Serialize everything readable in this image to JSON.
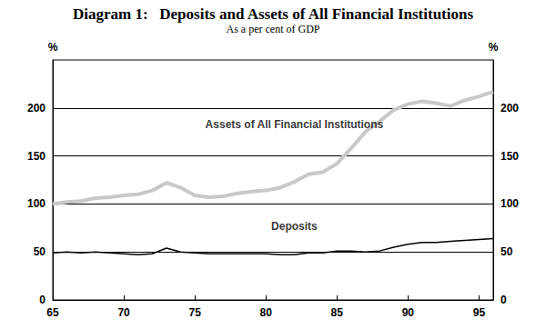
{
  "chart_data": {
    "type": "line",
    "title": "Diagram 1:   Deposits and Assets of All Financial Institutions",
    "subtitle": "As a per cent of GDP",
    "ylabel": "%",
    "x": [
      65,
      66,
      67,
      68,
      69,
      70,
      71,
      72,
      73,
      74,
      75,
      76,
      77,
      78,
      79,
      80,
      81,
      82,
      83,
      84,
      85,
      86,
      87,
      88,
      89,
      90,
      91,
      92,
      93,
      94,
      95,
      96
    ],
    "series": [
      {
        "name": "Assets of All Financial Institutions",
        "color": "#c8c8c8",
        "values": [
          100,
          102,
          103,
          106,
          107,
          109,
          110,
          114,
          122,
          117,
          109,
          107,
          108,
          111,
          113,
          114,
          117,
          123,
          131,
          133,
          142,
          158,
          175,
          186,
          198,
          204,
          207,
          205,
          202,
          208,
          212,
          217
        ]
      },
      {
        "name": "Deposits",
        "color": "#000000",
        "values": [
          49,
          50,
          49,
          50,
          49,
          48,
          47,
          48,
          54,
          50,
          49,
          48,
          48,
          48,
          48,
          48,
          47,
          47,
          49,
          49,
          51,
          51,
          50,
          51,
          55,
          58,
          60,
          60,
          61,
          62,
          63,
          64
        ]
      }
    ],
    "annotations": [
      {
        "text": "Assets of All Financial Institutions",
        "x": 82,
        "y": 183
      },
      {
        "text": "Deposits",
        "x": 82,
        "y": 77
      }
    ],
    "xlim": [
      65,
      96
    ],
    "xticks": [
      65,
      70,
      75,
      80,
      85,
      90,
      95
    ],
    "ylim": [
      0,
      250
    ],
    "yticks": [
      0,
      50,
      100,
      150,
      200
    ],
    "grid": true,
    "legend": false
  }
}
